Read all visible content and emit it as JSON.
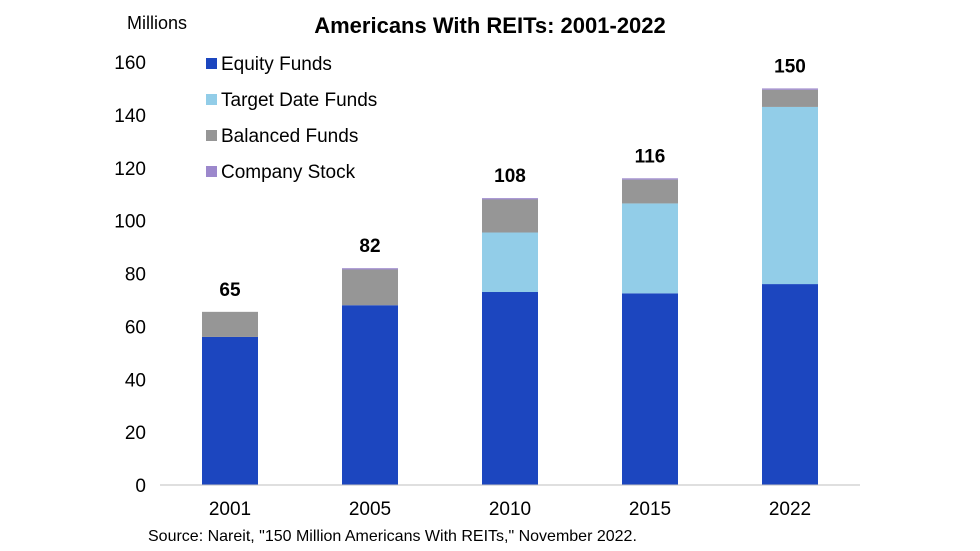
{
  "chart_data": {
    "type": "bar",
    "stacked": true,
    "title": "Americans With REITs: 2001-2022",
    "ylabel": "Millions",
    "xlabel": "",
    "ylim": [
      0,
      160
    ],
    "yticks": [
      0,
      20,
      40,
      60,
      80,
      100,
      120,
      140,
      160
    ],
    "categories": [
      "2001",
      "2005",
      "2010",
      "2015",
      "2022"
    ],
    "series": [
      {
        "name": "Equity Funds",
        "color": "#1c46bf",
        "values": [
          56,
          68,
          73,
          72.5,
          76
        ]
      },
      {
        "name": "Target Date Funds",
        "color": "#92cde8",
        "values": [
          0,
          0,
          22.5,
          34,
          67
        ]
      },
      {
        "name": "Balanced Funds",
        "color": "#969696",
        "values": [
          9.5,
          13.5,
          12.5,
          9,
          6.5
        ]
      },
      {
        "name": "Company Stock",
        "color": "#9c88cc",
        "values": [
          0,
          0.5,
          0.5,
          0.5,
          0.5
        ]
      }
    ],
    "totals": [
      "65",
      "82",
      "108",
      "116",
      "150"
    ],
    "legend_position": "top-left",
    "grid": false,
    "source": "Source: Nareit, \"150 Million Americans With REITs,\" November 2022."
  }
}
